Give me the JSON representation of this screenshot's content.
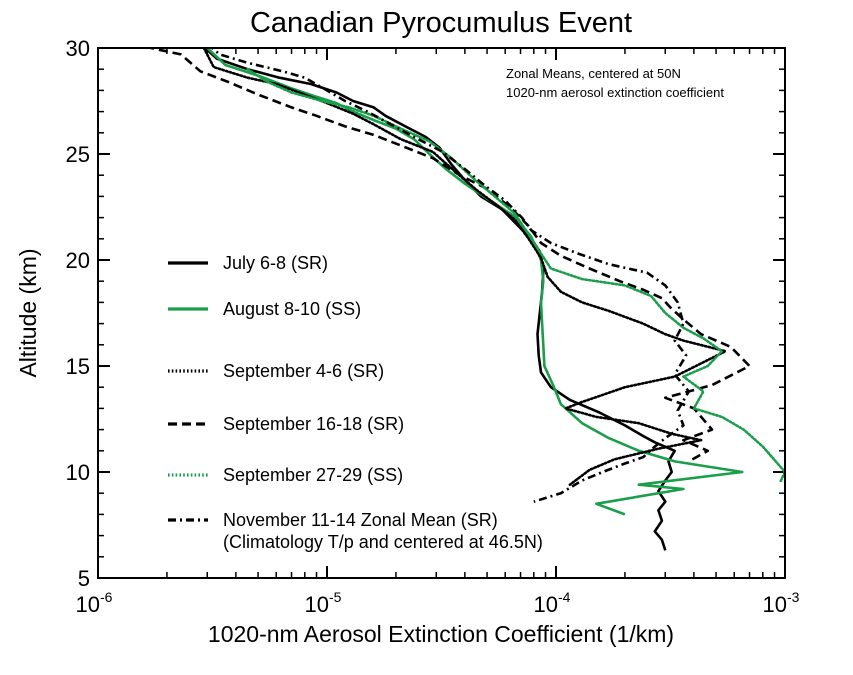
{
  "chart_data": {
    "type": "line",
    "title": "Canadian Pyrocumulus Event",
    "xlabel": "1020-nm Aerosol Extinction Coefficient (1/km)",
    "ylabel": "Altitude (km)",
    "x_scale": "log",
    "xlim": [
      1e-06,
      0.001
    ],
    "ylim": [
      5,
      30
    ],
    "x_ticks": [
      {
        "value": 1e-06,
        "base": "10",
        "exp": "-6"
      },
      {
        "value": 1e-05,
        "base": "10",
        "exp": "-5"
      },
      {
        "value": 0.0001,
        "base": "10",
        "exp": "-4"
      },
      {
        "value": 0.001,
        "base": "10",
        "exp": "-3"
      }
    ],
    "y_ticks": [
      5,
      10,
      15,
      20,
      25,
      30
    ],
    "annotation": [
      "Zonal Means, centered at 50N",
      "1020-nm aerosol extinction coefficient"
    ],
    "legend_position": "left",
    "series": [
      {
        "name": "July 6-8 (SR)",
        "color": "#000000",
        "dash": "solid",
        "points": [
          [
            2.8e-06,
            30.2
          ],
          [
            3.3e-06,
            29.5
          ],
          [
            4.5e-06,
            29.0
          ],
          [
            6.2e-06,
            28.6
          ],
          [
            8.5e-06,
            28.3
          ],
          [
            1.1e-05,
            27.9
          ],
          [
            1.3e-05,
            27.5
          ],
          [
            1.6e-05,
            27.2
          ],
          [
            1.8e-05,
            26.8
          ],
          [
            2.2e-05,
            26.3
          ],
          [
            2.7e-05,
            25.8
          ],
          [
            3.1e-05,
            25.3
          ],
          [
            3.5e-05,
            24.5
          ],
          [
            3.9e-05,
            23.9
          ],
          [
            4.7e-05,
            23.0
          ],
          [
            5.8e-05,
            22.4
          ],
          [
            7e-05,
            21.5
          ],
          [
            7.8e-05,
            21.0
          ],
          [
            8.5e-05,
            20.4
          ],
          [
            8.8e-05,
            19.5
          ],
          [
            8.7e-05,
            18.5
          ],
          [
            8.5e-05,
            17.5
          ],
          [
            8.3e-05,
            16.5
          ],
          [
            8.4e-05,
            15.5
          ],
          [
            8.6e-05,
            14.7
          ],
          [
            9.5e-05,
            14.0
          ],
          [
            0.000115,
            13.4
          ],
          [
            0.000155,
            12.8
          ],
          [
            0.0002,
            12.2
          ],
          [
            0.00024,
            11.7
          ],
          [
            0.00027,
            11.4
          ],
          [
            0.00033,
            11.0
          ],
          [
            0.00031,
            10.5
          ],
          [
            0.00032,
            10.0
          ],
          [
            0.0003,
            9.6
          ],
          [
            0.00028,
            9.1
          ],
          [
            0.0003,
            8.6
          ],
          [
            0.00028,
            8.2
          ],
          [
            0.00029,
            7.7
          ],
          [
            0.00027,
            7.2
          ],
          [
            0.00029,
            6.8
          ],
          [
            0.0003,
            6.3
          ]
        ]
      },
      {
        "name": "August 8-10 (SS)",
        "color": "#1a9e4a",
        "dash": "solid",
        "points": [
          [
            3e-06,
            30.0
          ],
          [
            3.6e-06,
            29.2
          ],
          [
            5e-06,
            28.7
          ],
          [
            7e-06,
            28.1
          ],
          [
            9e-06,
            27.7
          ],
          [
            1.1e-05,
            27.4
          ],
          [
            1.3e-05,
            27.0
          ],
          [
            1.6e-05,
            26.6
          ],
          [
            2e-05,
            26.2
          ],
          [
            2.4e-05,
            25.7
          ],
          [
            2.8e-05,
            25.0
          ],
          [
            3.3e-05,
            24.3
          ],
          [
            4e-05,
            23.6
          ],
          [
            5e-05,
            22.9
          ],
          [
            6.5e-05,
            22.1
          ],
          [
            7.8e-05,
            21.1
          ],
          [
            8.6e-05,
            20.0
          ],
          [
            8.8e-05,
            19.0
          ],
          [
            8.6e-05,
            18.0
          ],
          [
            8.7e-05,
            17.0
          ],
          [
            8.8e-05,
            16.0
          ],
          [
            8.9e-05,
            15.0
          ],
          [
            9.8e-05,
            14.0
          ],
          [
            0.000105,
            13.2
          ],
          [
            0.00013,
            12.3
          ],
          [
            0.00017,
            11.6
          ],
          [
            0.00023,
            11.0
          ],
          [
            0.00033,
            10.5
          ],
          [
            0.00065,
            10.0
          ],
          [
            0.00023,
            9.4
          ],
          [
            0.00036,
            9.2
          ],
          [
            0.00015,
            8.5
          ],
          [
            0.0002,
            8.0
          ]
        ]
      },
      {
        "name": "September 4-6 (SR)",
        "color": "#000000",
        "dash": "dotted",
        "points": [
          [
            2.9e-06,
            30.0
          ],
          [
            3.2e-06,
            29.1
          ],
          [
            4.5e-06,
            28.6
          ],
          [
            6e-06,
            28.3
          ],
          [
            8e-06,
            27.8
          ],
          [
            1e-05,
            27.4
          ],
          [
            1.3e-05,
            26.9
          ],
          [
            1.6e-05,
            26.4
          ],
          [
            2.1e-05,
            25.7
          ],
          [
            2.9e-05,
            25.1
          ],
          [
            3.6e-05,
            24.2
          ],
          [
            4.5e-05,
            23.3
          ],
          [
            5.5e-05,
            22.6
          ],
          [
            6.6e-05,
            21.9
          ],
          [
            7.6e-05,
            21.0
          ],
          [
            8.6e-05,
            20.1
          ],
          [
            9.2e-05,
            19.2
          ],
          [
            0.000105,
            18.5
          ],
          [
            0.00013,
            18.0
          ],
          [
            0.00017,
            17.6
          ],
          [
            0.00024,
            17.0
          ],
          [
            0.0003,
            16.5
          ],
          [
            0.00036,
            16.2
          ],
          [
            0.00055,
            15.7
          ],
          [
            0.00033,
            14.5
          ],
          [
            0.0002,
            14.0
          ],
          [
            0.00013,
            13.3
          ],
          [
            0.00011,
            13.0
          ],
          [
            0.00015,
            12.6
          ],
          [
            0.00023,
            12.3
          ],
          [
            0.00032,
            11.8
          ],
          [
            0.00043,
            11.5
          ],
          [
            0.00028,
            11.1
          ],
          [
            0.00018,
            10.6
          ],
          [
            0.00014,
            10.1
          ],
          [
            0.000115,
            9.4
          ]
        ]
      },
      {
        "name": "September 16-18 (SR)",
        "color": "#000000",
        "dash": "dashed",
        "points": [
          [
            1.4e-06,
            30.2
          ],
          [
            2.3e-06,
            29.7
          ],
          [
            2.8e-06,
            28.9
          ],
          [
            3.7e-06,
            28.4
          ],
          [
            5e-06,
            27.8
          ],
          [
            7e-06,
            27.2
          ],
          [
            9e-06,
            26.8
          ],
          [
            1.2e-05,
            26.3
          ],
          [
            1.6e-05,
            25.9
          ],
          [
            2.1e-05,
            25.4
          ],
          [
            2.9e-05,
            24.8
          ],
          [
            3.8e-05,
            24.0
          ],
          [
            4.9e-05,
            23.4
          ],
          [
            6.3e-05,
            22.5
          ],
          [
            7.6e-05,
            21.6
          ],
          [
            8.6e-05,
            20.8
          ],
          [
            0.000105,
            20.2
          ],
          [
            0.00014,
            19.6
          ],
          [
            0.00019,
            19.0
          ],
          [
            0.00024,
            18.6
          ],
          [
            0.00029,
            18.2
          ],
          [
            0.00032,
            17.7
          ],
          [
            0.00036,
            17.2
          ],
          [
            0.00043,
            16.5
          ],
          [
            0.00058,
            15.9
          ],
          [
            0.0007,
            15.0
          ],
          [
            0.00048,
            14.1
          ],
          [
            0.0003,
            13.5
          ],
          [
            0.0004,
            13.0
          ],
          [
            0.00048,
            12.0
          ],
          [
            0.00036,
            11.5
          ],
          [
            0.00046,
            11.0
          ],
          [
            0.00038,
            10.5
          ]
        ]
      },
      {
        "name": "September 27-29 (SS)",
        "color": "#1a9e4a",
        "dash": "dotted",
        "points": [
          [
            4.5e-06,
            29.0
          ],
          [
            5.5e-06,
            28.4
          ],
          [
            7e-06,
            27.9
          ],
          [
            9.5e-06,
            27.5
          ],
          [
            1.25e-05,
            27.2
          ],
          [
            1.6e-05,
            26.8
          ],
          [
            2.1e-05,
            26.2
          ],
          [
            2.8e-05,
            25.6
          ],
          [
            3.5e-05,
            24.8
          ],
          [
            4.4e-05,
            23.8
          ],
          [
            5.4e-05,
            23.0
          ],
          [
            6.6e-05,
            22.2
          ],
          [
            7.6e-05,
            21.2
          ],
          [
            8.6e-05,
            20.3
          ],
          [
            9.5e-05,
            19.6
          ],
          [
            0.00013,
            19.1
          ],
          [
            0.0002,
            18.8
          ],
          [
            0.00026,
            18.3
          ],
          [
            0.0003,
            17.5
          ],
          [
            0.00036,
            16.8
          ],
          [
            0.00044,
            16.3
          ],
          [
            0.00053,
            15.7
          ],
          [
            0.00046,
            15.0
          ],
          [
            0.00036,
            14.5
          ],
          [
            0.00044,
            13.8
          ],
          [
            0.0004,
            13.0
          ],
          [
            0.00053,
            12.6
          ],
          [
            0.00066,
            12.0
          ],
          [
            0.0008,
            11.2
          ],
          [
            0.001,
            10.0
          ],
          [
            0.00095,
            9.5
          ]
        ]
      },
      {
        "name": "November 11-14 Zonal Mean (SR)",
        "color": "#000000",
        "dash": "dashdot",
        "points": [
          [
            3e-06,
            30.2
          ],
          [
            3.4e-06,
            29.7
          ],
          [
            4.5e-06,
            29.3
          ],
          [
            6.4e-06,
            28.9
          ],
          [
            8e-06,
            28.6
          ],
          [
            1e-05,
            28.0
          ],
          [
            1.2e-05,
            27.5
          ],
          [
            1.5e-05,
            27.0
          ],
          [
            1.9e-05,
            26.4
          ],
          [
            2.4e-05,
            25.8
          ],
          [
            3.2e-05,
            25.1
          ],
          [
            4.1e-05,
            24.2
          ],
          [
            4.9e-05,
            23.5
          ],
          [
            6e-05,
            22.8
          ],
          [
            7.1e-05,
            22.0
          ],
          [
            7.8e-05,
            21.4
          ],
          [
            9.5e-05,
            20.8
          ],
          [
            0.000125,
            20.3
          ],
          [
            0.00017,
            19.8
          ],
          [
            0.00025,
            19.4
          ],
          [
            0.0003,
            18.8
          ],
          [
            0.00034,
            18.0
          ],
          [
            0.00036,
            17.0
          ],
          [
            0.00033,
            16.2
          ],
          [
            0.00037,
            15.5
          ],
          [
            0.00033,
            14.6
          ],
          [
            0.00038,
            13.8
          ],
          [
            0.00034,
            12.9
          ],
          [
            0.00036,
            12.2
          ],
          [
            0.0003,
            11.6
          ],
          [
            0.00027,
            11.2
          ],
          [
            0.00024,
            10.7
          ],
          [
            0.0002,
            10.4
          ],
          [
            0.00016,
            10.0
          ],
          [
            0.00013,
            9.6
          ],
          [
            0.000105,
            9.0
          ],
          [
            8e-05,
            8.6
          ]
        ]
      }
    ],
    "legend_items": [
      {
        "text": "July 6-8 (SR)",
        "color": "#000000",
        "dash": "solid"
      },
      {
        "text": "August 8-10 (SS)",
        "color": "#1a9e4a",
        "dash": "solid"
      },
      {
        "text": "September 4-6 (SR)",
        "color": "#000000",
        "dash": "dotted"
      },
      {
        "text": "September 16-18 (SR)",
        "color": "#000000",
        "dash": "dashed"
      },
      {
        "text": "September 27-29 (SS)",
        "color": "#1a9e4a",
        "dash": "dotted"
      },
      {
        "text": "November 11-14 Zonal Mean (SR)",
        "color": "#000000",
        "dash": "dashdot"
      }
    ],
    "legend_note": "(Climatology T/p and centered at 46.5N)"
  }
}
